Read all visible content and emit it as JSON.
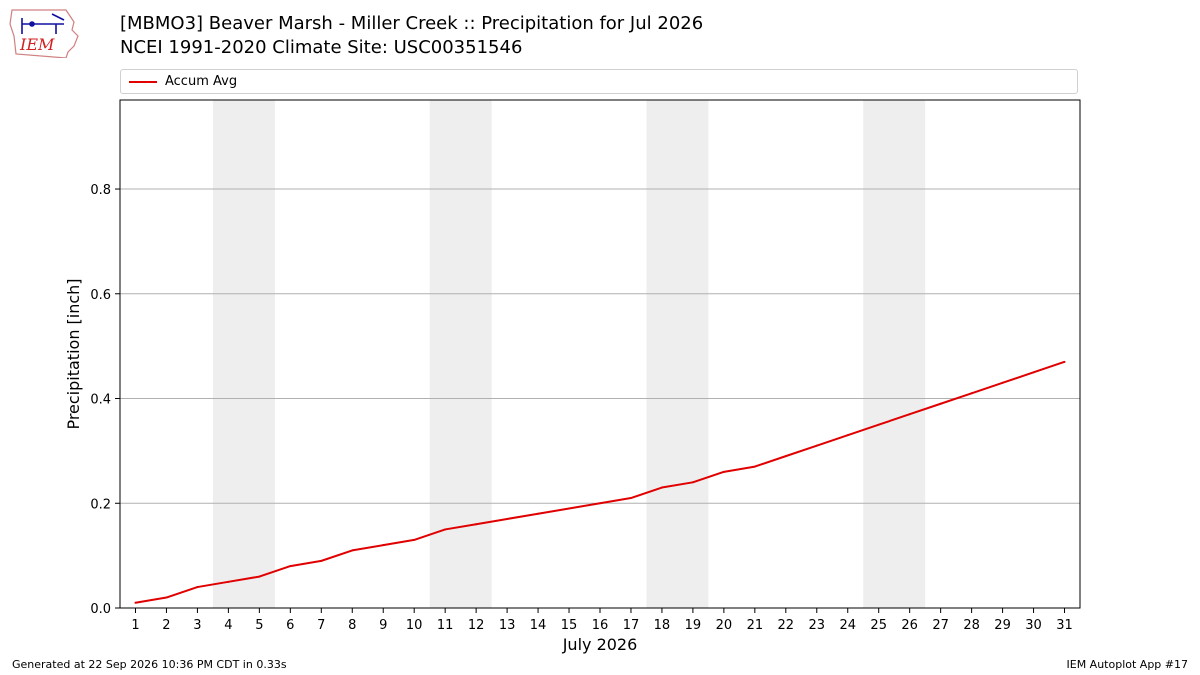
{
  "header": {
    "logo_text": "IEM",
    "title_line1": "[MBMO3] Beaver Marsh - Miller Creek :: Precipitation for Jul 2026",
    "title_line2": "NCEI 1991-2020 Climate Site: USC00351546"
  },
  "chart_data": {
    "type": "line",
    "xlabel": "July 2026",
    "ylabel": "Precipitation [inch]",
    "xlim": [
      0.5,
      31.5
    ],
    "ylim": [
      0,
      0.97
    ],
    "yticks": [
      0.0,
      0.2,
      0.4,
      0.6,
      0.8
    ],
    "ytick_labels": [
      "0.0",
      "0.2",
      "0.4",
      "0.6",
      "0.8"
    ],
    "x": [
      1,
      2,
      3,
      4,
      5,
      6,
      7,
      8,
      9,
      10,
      11,
      12,
      13,
      14,
      15,
      16,
      17,
      18,
      19,
      20,
      21,
      22,
      23,
      24,
      25,
      26,
      27,
      28,
      29,
      30,
      31
    ],
    "xtick_labels": [
      "1",
      "2",
      "3",
      "4",
      "5",
      "6",
      "7",
      "8",
      "9",
      "10",
      "11",
      "12",
      "13",
      "14",
      "15",
      "16",
      "17",
      "18",
      "19",
      "20",
      "21",
      "22",
      "23",
      "24",
      "25",
      "26",
      "27",
      "28",
      "29",
      "30",
      "31"
    ],
    "weekend_bands": [
      [
        4,
        5
      ],
      [
        11,
        12
      ],
      [
        18,
        19
      ],
      [
        25,
        26
      ]
    ],
    "grid": "horizontal",
    "legend": "top",
    "series": [
      {
        "name": "Accum Avg",
        "color": "#e00000",
        "values": [
          0.01,
          0.02,
          0.04,
          0.05,
          0.06,
          0.08,
          0.09,
          0.11,
          0.12,
          0.13,
          0.15,
          0.16,
          0.17,
          0.18,
          0.19,
          0.2,
          0.21,
          0.23,
          0.24,
          0.26,
          0.27,
          0.29,
          0.31,
          0.33,
          0.35,
          0.37,
          0.39,
          0.41,
          0.43,
          0.45,
          0.47
        ]
      }
    ]
  },
  "footer": {
    "generated": "Generated at 22 Sep 2026 10:36 PM CDT in 0.33s",
    "app": "IEM Autoplot App #17"
  }
}
